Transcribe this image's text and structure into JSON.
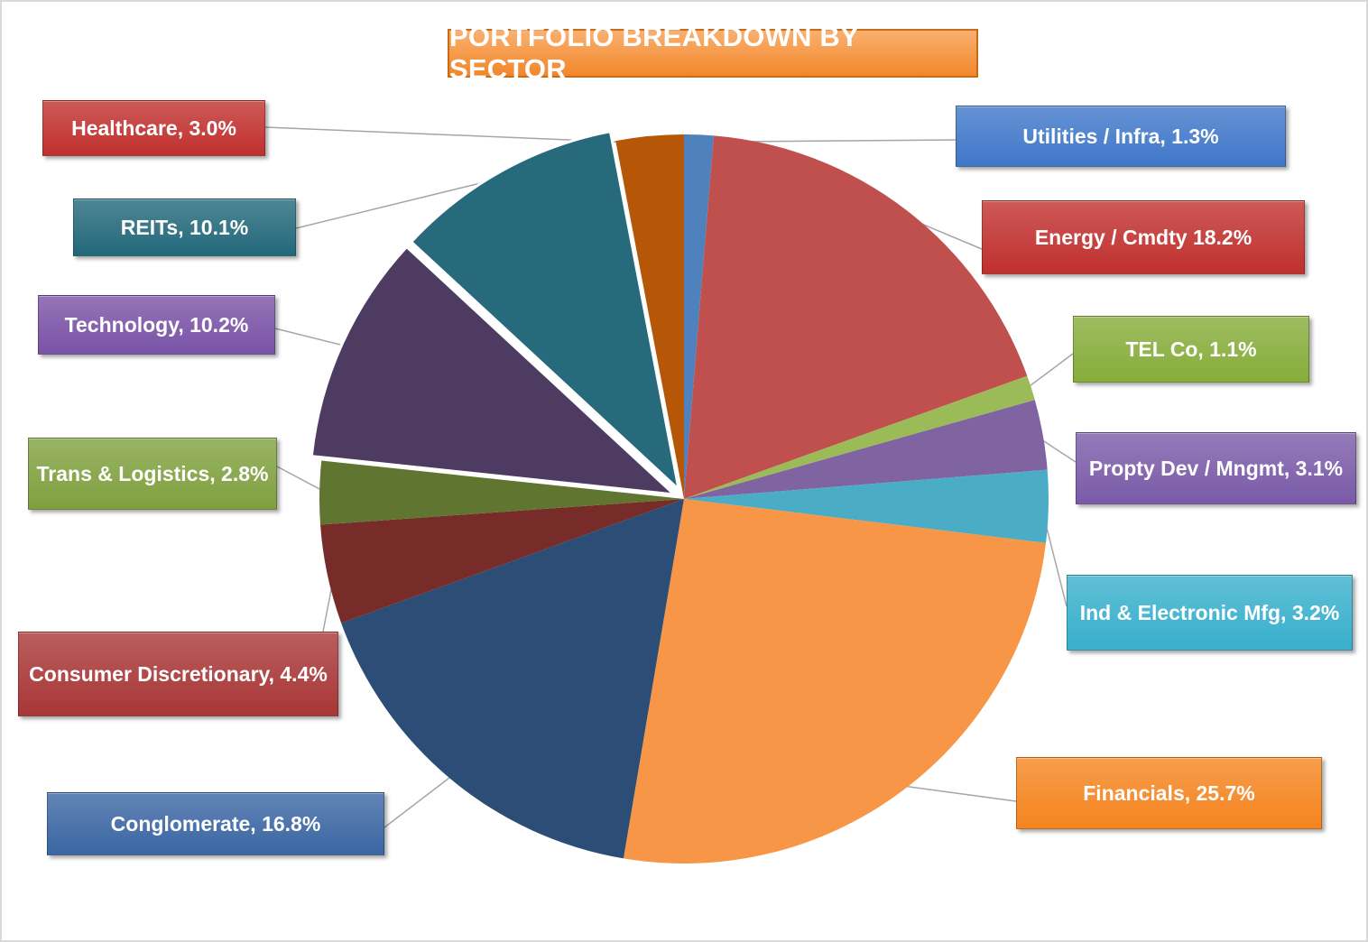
{
  "chart_data": {
    "type": "pie",
    "title": "PORTFOLIO BREAKDOWN BY SECTOR",
    "slices": [
      {
        "name": "Utilities / Infra",
        "value": 1.3,
        "label": "Utilities / Infra, 1.3%",
        "color": "#4f81bd",
        "label_color": "#3f77c9"
      },
      {
        "name": "Energy / Cmdty",
        "value": 18.2,
        "label": "Energy / Cmdty 18.2%",
        "color": "#c0504d",
        "label_color": "#c0302e"
      },
      {
        "name": "TEL Co",
        "value": 1.1,
        "label": "TEL Co, 1.1%",
        "color": "#9bbb59",
        "label_color": "#86ac3a"
      },
      {
        "name": "Propty Dev / Mngmt",
        "value": 3.1,
        "label": "Propty Dev / Mngmt, 3.1%",
        "color": "#8064a2",
        "label_color": "#7a5aa8"
      },
      {
        "name": "Ind & Electronic Mfg",
        "value": 3.2,
        "label": "Ind & Electronic Mfg, 3.2%",
        "color": "#4bacc6",
        "label_color": "#38afcc"
      },
      {
        "name": "Financials",
        "value": 25.7,
        "label": "Financials, 25.7%",
        "color": "#f79646",
        "label_color": "#f5841f"
      },
      {
        "name": "Conglomerate",
        "value": 16.8,
        "label": "Conglomerate, 16.8%",
        "color": "#2c4d75",
        "label_color": "#3a66a3"
      },
      {
        "name": "Consumer Discretionary",
        "value": 4.4,
        "label": "Consumer Discretionary, 4.4%",
        "color": "#772c2a",
        "label_color": "#a83636"
      },
      {
        "name": "Trans & Logistics",
        "value": 2.8,
        "label": "Trans & Logistics, 2.8%",
        "color": "#5f7530",
        "label_color": "#7fa03e"
      },
      {
        "name": "Technology",
        "value": 10.2,
        "label": "Technology, 10.2%",
        "color": "#4d3b62",
        "label_color": "#7a52a6",
        "exploded": true
      },
      {
        "name": "REITs",
        "value": 10.1,
        "label": "REITs, 10.1%",
        "color": "#276a7c",
        "label_color": "#22687a",
        "exploded": true
      },
      {
        "name": "Healthcare",
        "value": 3.0,
        "label": "Healthcare, 3.0%",
        "color": "#b65708",
        "label_color": "#c0302e"
      }
    ]
  }
}
